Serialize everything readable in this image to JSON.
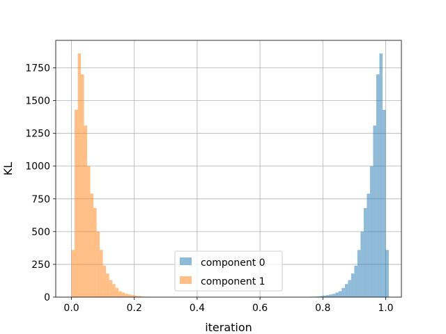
{
  "chart_data": {
    "type": "bar",
    "subtype": "histogram",
    "title": "",
    "xlabel": "iteration",
    "ylabel": "KL",
    "xlim": [
      -0.05,
      1.05
    ],
    "ylim": [
      0,
      1960
    ],
    "xticks": [
      0.0,
      0.2,
      0.4,
      0.6,
      0.8,
      1.0
    ],
    "xtick_labels": [
      "0.0",
      "0.2",
      "0.4",
      "0.6",
      "0.8",
      "1.0"
    ],
    "yticks": [
      0,
      250,
      500,
      750,
      1000,
      1250,
      1500,
      1750
    ],
    "ytick_labels": [
      "0",
      "250",
      "500",
      "750",
      "1000",
      "1250",
      "1500",
      "1750"
    ],
    "grid": true,
    "legend": {
      "position": "bottom-center"
    },
    "bin_width": 0.01,
    "series": [
      {
        "name": "component 0",
        "color": "#1f77b4",
        "opacity": 0.5,
        "bins": [
          [
            0.76,
            3
          ],
          [
            0.77,
            3
          ],
          [
            0.78,
            5
          ],
          [
            0.79,
            8
          ],
          [
            0.8,
            12
          ],
          [
            0.81,
            15
          ],
          [
            0.82,
            20
          ],
          [
            0.83,
            25
          ],
          [
            0.84,
            35
          ],
          [
            0.85,
            45
          ],
          [
            0.86,
            70
          ],
          [
            0.87,
            100
          ],
          [
            0.88,
            130
          ],
          [
            0.89,
            180
          ],
          [
            0.9,
            240
          ],
          [
            0.91,
            360
          ],
          [
            0.92,
            500
          ],
          [
            0.93,
            680
          ],
          [
            0.94,
            790
          ],
          [
            0.95,
            1000
          ],
          [
            0.96,
            1310
          ],
          [
            0.97,
            1700
          ],
          [
            0.98,
            1860
          ],
          [
            0.99,
            1430
          ],
          [
            1.0,
            360
          ]
        ]
      },
      {
        "name": "component 1",
        "color": "#ff7f0e",
        "opacity": 0.5,
        "bins": [
          [
            0.0,
            360
          ],
          [
            0.01,
            1430
          ],
          [
            0.02,
            1860
          ],
          [
            0.03,
            1700
          ],
          [
            0.04,
            1310
          ],
          [
            0.05,
            1000
          ],
          [
            0.06,
            790
          ],
          [
            0.07,
            680
          ],
          [
            0.08,
            500
          ],
          [
            0.09,
            360
          ],
          [
            0.1,
            240
          ],
          [
            0.11,
            180
          ],
          [
            0.12,
            130
          ],
          [
            0.13,
            100
          ],
          [
            0.14,
            70
          ],
          [
            0.15,
            45
          ],
          [
            0.16,
            35
          ],
          [
            0.17,
            25
          ],
          [
            0.18,
            20
          ],
          [
            0.19,
            15
          ],
          [
            0.2,
            12
          ],
          [
            0.21,
            8
          ],
          [
            0.22,
            5
          ],
          [
            0.23,
            3
          ],
          [
            0.24,
            3
          ]
        ]
      }
    ]
  }
}
